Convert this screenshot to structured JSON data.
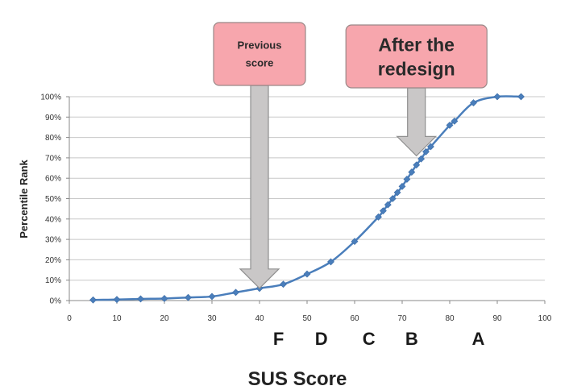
{
  "chart_data": {
    "type": "line",
    "x": [
      5,
      10,
      15,
      20,
      25,
      30,
      35,
      40,
      45,
      50,
      55,
      60,
      65,
      66,
      67,
      68,
      69,
      70,
      71,
      72,
      73,
      74,
      75,
      76,
      80,
      81,
      85,
      90,
      95
    ],
    "series": [
      {
        "values": [
          0.3,
          0.5,
          0.8,
          1,
          1.5,
          2,
          4,
          6,
          8,
          13,
          19,
          29,
          41,
          44,
          47,
          50,
          53,
          56,
          59.5,
          63,
          66.5,
          69.5,
          73,
          75.5,
          86,
          88,
          97,
          100,
          100
        ]
      }
    ],
    "color": "#4a7ebb",
    "xlabel": "SUS Score",
    "ylabel": "Percentile Rank",
    "xlim": [
      0,
      100
    ],
    "ylim": [
      0,
      100
    ],
    "xticks": [
      "0",
      "10",
      "20",
      "30",
      "40",
      "50",
      "60",
      "70",
      "80",
      "90",
      "100"
    ],
    "yticks": [
      "0%",
      "10%",
      "20%",
      "30%",
      "40%",
      "50%",
      "60%",
      "70%",
      "80%",
      "90%",
      "100%"
    ],
    "grid": "horizontal",
    "grades": [
      {
        "label": "F",
        "x": 44
      },
      {
        "label": "D",
        "x": 53
      },
      {
        "label": "C",
        "x": 63
      },
      {
        "label": "B",
        "x": 72
      },
      {
        "label": "A",
        "x": 86
      }
    ],
    "annotations": [
      {
        "lines": [
          "Previous",
          "score"
        ],
        "x": 40,
        "y": 6
      },
      {
        "lines": [
          "After the",
          "redesign"
        ],
        "x": 73,
        "y": 71
      }
    ]
  }
}
